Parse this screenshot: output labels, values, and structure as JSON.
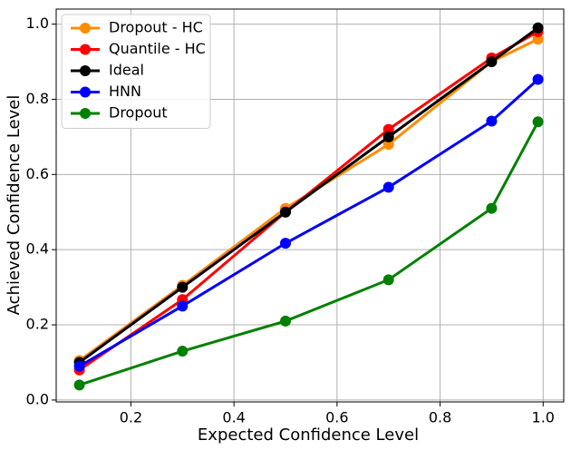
{
  "chart_data": {
    "type": "line",
    "x_label": "Expected Confidence Level",
    "y_label": "Achieved  Confidence Level",
    "x": [
      0.1,
      0.3,
      0.5,
      0.7,
      0.9,
      0.99
    ],
    "series": [
      {
        "name": "Dropout - HC",
        "color": "#ff8c00",
        "values": [
          0.105,
          0.305,
          0.51,
          0.68,
          0.9,
          0.96
        ]
      },
      {
        "name": "Quantile - HC",
        "color": "#ff0000",
        "values": [
          0.08,
          0.267,
          0.5,
          0.72,
          0.91,
          0.98
        ]
      },
      {
        "name": "Ideal",
        "color": "#000000",
        "values": [
          0.1,
          0.3,
          0.5,
          0.7,
          0.9,
          0.99
        ]
      },
      {
        "name": "HNN",
        "color": "#0000ff",
        "values": [
          0.09,
          0.25,
          0.417,
          0.566,
          0.742,
          0.853
        ]
      },
      {
        "name": "Dropout",
        "color": "#008000",
        "values": [
          0.04,
          0.13,
          0.21,
          0.32,
          0.51,
          0.74
        ]
      }
    ],
    "xlim": [
      0.055,
      1.04
    ],
    "ylim": [
      -0.005,
      1.04
    ],
    "xticks": [
      0.2,
      0.4,
      0.6,
      0.8,
      {
        "value": 1.0,
        "label": "1.0"
      }
    ],
    "yticks": [
      {
        "value": 0.0,
        "label": "0.0"
      },
      0.2,
      0.4,
      0.6,
      0.8,
      {
        "value": 1.0,
        "label": "1.0"
      }
    ],
    "grid": true,
    "legend": "upper-left"
  }
}
